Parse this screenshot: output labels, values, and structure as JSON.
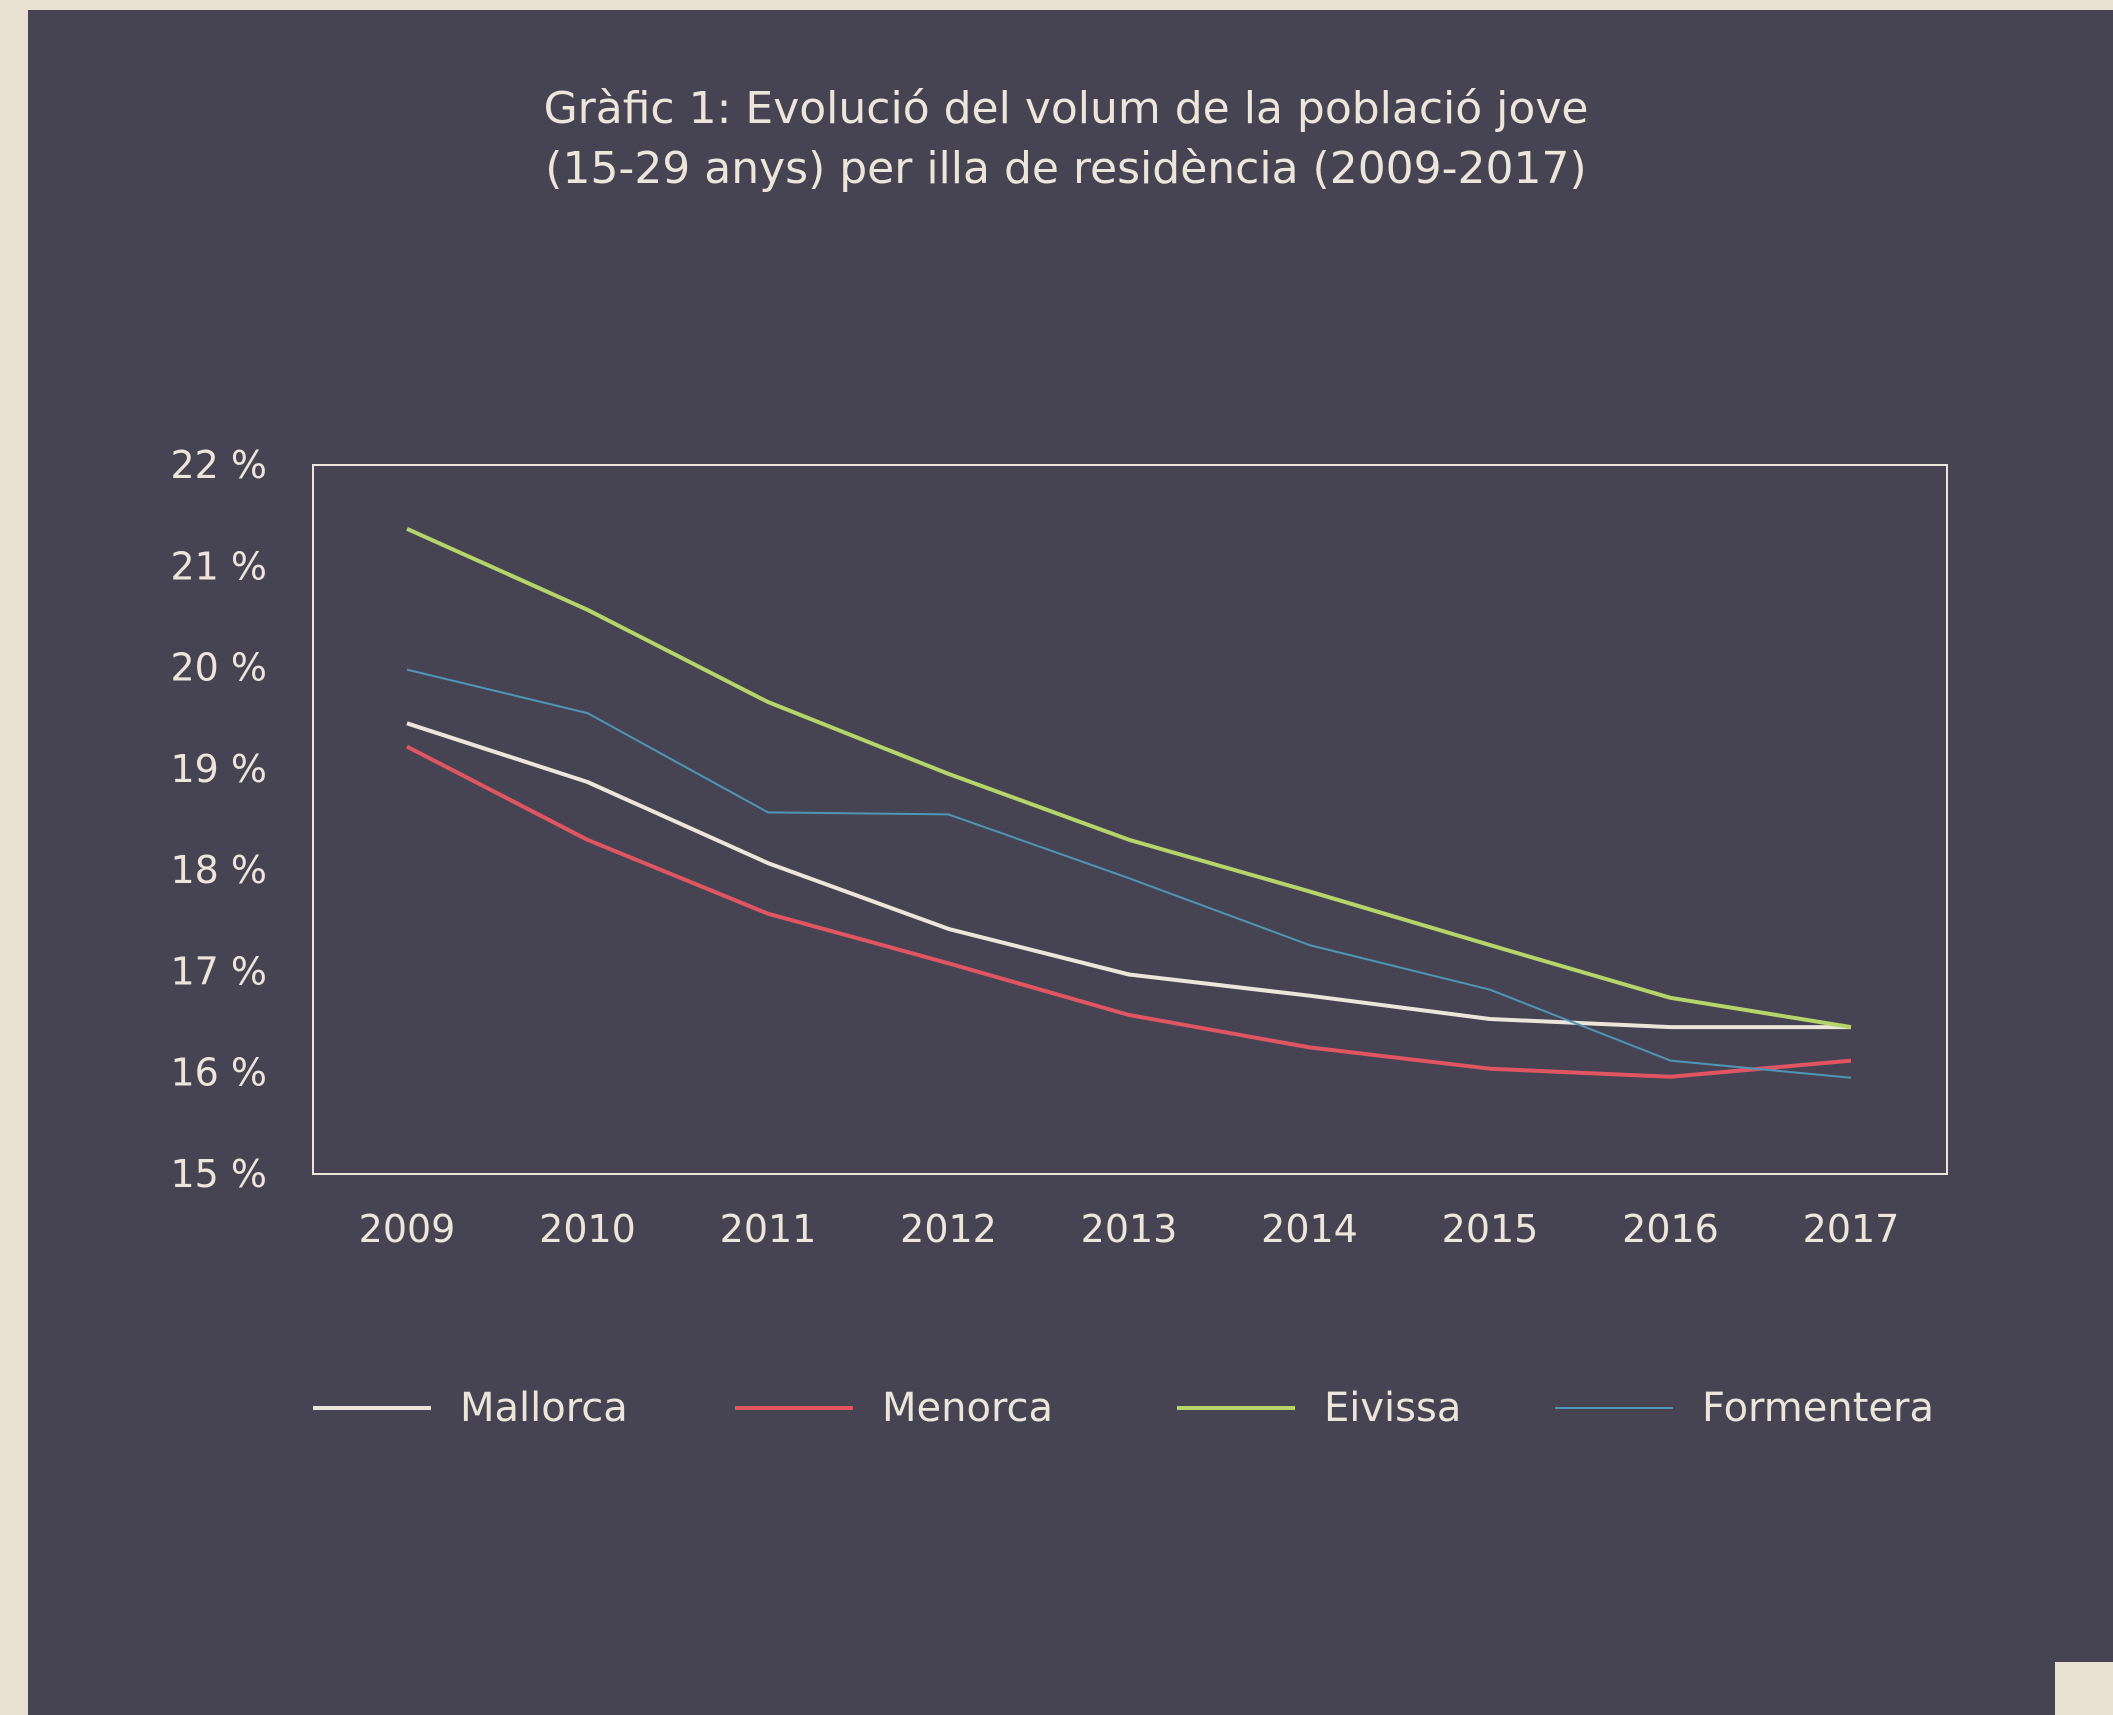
{
  "chart_data": {
    "type": "line",
    "title": "Gràfic 1: Evolució del volum de la població jove",
    "subtitle": "(15-29 anys) per illa de residència (2009-2017)",
    "x": [
      "2009",
      "2010",
      "2011",
      "2012",
      "2013",
      "2014",
      "2015",
      "2016",
      "2017"
    ],
    "y_ticks": [
      "15 %",
      "16 %",
      "17 %",
      "18 %",
      "19 %",
      "20 %",
      "21 %",
      "22 %"
    ],
    "ylim": [
      15,
      22
    ],
    "y_unit": "%",
    "grid": false,
    "legend_position": "bottom",
    "series": [
      {
        "name": "Mallorca",
        "color": "#ece6da",
        "values": [
          19.45,
          18.87,
          18.07,
          17.42,
          16.97,
          16.76,
          16.53,
          16.45,
          16.45
        ]
      },
      {
        "name": "Menorca",
        "color": "#e05562",
        "values": [
          19.22,
          18.3,
          17.57,
          17.08,
          16.57,
          16.25,
          16.04,
          15.96,
          16.12
        ]
      },
      {
        "name": "Eivissa",
        "color": "#b5d46a",
        "values": [
          21.37,
          20.57,
          19.66,
          18.95,
          18.3,
          17.79,
          17.26,
          16.74,
          16.45
        ]
      },
      {
        "name": "Formentera",
        "color": "#4f95b5",
        "values": [
          19.98,
          19.55,
          18.57,
          18.55,
          17.92,
          17.26,
          16.82,
          16.12,
          15.95
        ]
      }
    ]
  }
}
